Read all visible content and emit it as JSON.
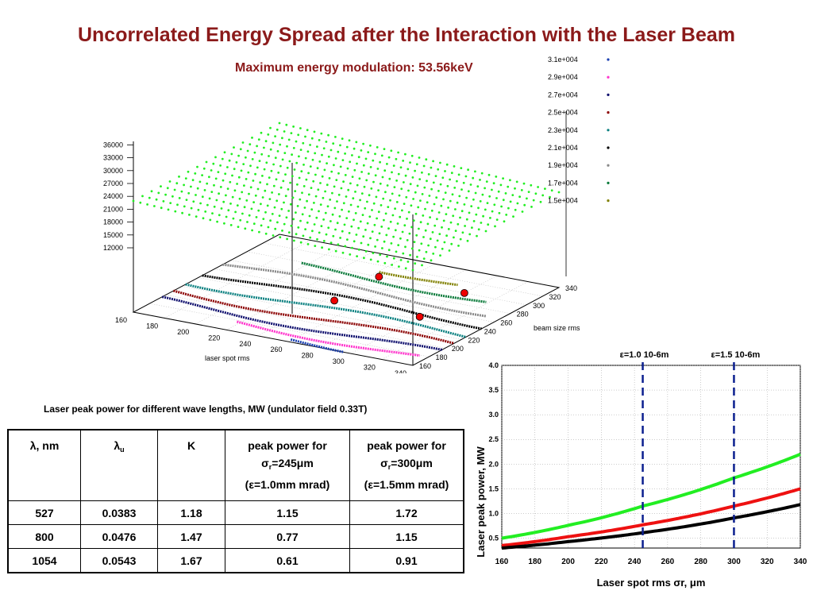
{
  "title": "Uncorrelated Energy Spread after the Interaction with the Laser Beam",
  "subtitle": "Maximum energy modulation: 53.56keV",
  "colors": {
    "title": "#8b1a1a",
    "green": "#22ee22",
    "red": "#ee1111",
    "black": "#000000",
    "navy": "#0b1f8f"
  },
  "chart_data": [
    {
      "type": "scatter",
      "kind": "3d-surface-contours",
      "xlabel": "laser spot rms",
      "ylabel": "beam size rms",
      "x_ticks": [
        "160",
        "180",
        "200",
        "220",
        "240",
        "260",
        "280",
        "300",
        "320",
        "340"
      ],
      "y_ticks": [
        "160",
        "180",
        "200",
        "220",
        "240",
        "260",
        "280",
        "300",
        "320",
        "340"
      ],
      "z_ticks": [
        "12000",
        "15000",
        "18000",
        "21000",
        "24000",
        "27000",
        "30000",
        "33000",
        "36000"
      ],
      "legend": [
        {
          "label": "3.1e+004",
          "color": "#1a3fb0"
        },
        {
          "label": "2.9e+004",
          "color": "#ff33cc"
        },
        {
          "label": "2.7e+004",
          "color": "#10106e"
        },
        {
          "label": "2.5e+004",
          "color": "#8b0000"
        },
        {
          "label": "2.3e+004",
          "color": "#0b8080"
        },
        {
          "label": "2.1e+004",
          "color": "#000000"
        },
        {
          "label": "1.9e+004",
          "color": "#888888"
        },
        {
          "label": "1.7e+004",
          "color": "#0a7a3a"
        },
        {
          "label": "1.5e+004",
          "color": "#808000"
        }
      ],
      "marked_points": [
        {
          "laser_spot": 245,
          "beam_size": 245
        },
        {
          "laser_spot": 245,
          "beam_size": 300
        },
        {
          "laser_spot": 300,
          "beam_size": 245
        },
        {
          "laser_spot": 300,
          "beam_size": 300
        }
      ]
    },
    {
      "type": "line",
      "xlabel": "Laser spot rms σr, μm",
      "ylabel": "Laser peak power, MW",
      "xlim": [
        160,
        340
      ],
      "ylim": [
        0.3,
        4.0
      ],
      "x_ticks": [
        "160",
        "180",
        "200",
        "220",
        "240",
        "260",
        "280",
        "300",
        "320",
        "340"
      ],
      "y_ticks": [
        "0.5",
        "1.0",
        "1.5",
        "2.0",
        "2.5",
        "3.0",
        "3.5",
        "4.0"
      ],
      "x": [
        160,
        200,
        245,
        300,
        340
      ],
      "series": [
        {
          "color": "#22ee22",
          "values": [
            0.5,
            0.76,
            1.15,
            1.72,
            2.2
          ]
        },
        {
          "color": "#ee1111",
          "values": [
            0.35,
            0.53,
            0.77,
            1.15,
            1.5
          ]
        },
        {
          "color": "#000000",
          "values": [
            0.3,
            0.43,
            0.61,
            0.91,
            1.18
          ]
        }
      ],
      "vlines": [
        {
          "x": 245,
          "label": "ε=1.0 10-6m"
        },
        {
          "x": 300,
          "label": "ε=1.5 10-6m"
        }
      ],
      "grid": true
    }
  ],
  "table": {
    "caption": "Laser peak power for different wave lengths, MW (undulator field 0.33T)",
    "headers": [
      "λ, nm",
      "λu",
      "K",
      "peak power for σr=245μm (ε=1.0mm mrad)",
      "peak power for σr=300μm (ε=1.5mm mrad)"
    ],
    "rows": [
      [
        "527",
        "0.0383",
        "1.18",
        "1.15",
        "1.72"
      ],
      [
        "800",
        "0.0476",
        "1.47",
        "0.77",
        "1.15"
      ],
      [
        "1054",
        "0.0543",
        "1.67",
        "0.61",
        "0.91"
      ]
    ]
  }
}
